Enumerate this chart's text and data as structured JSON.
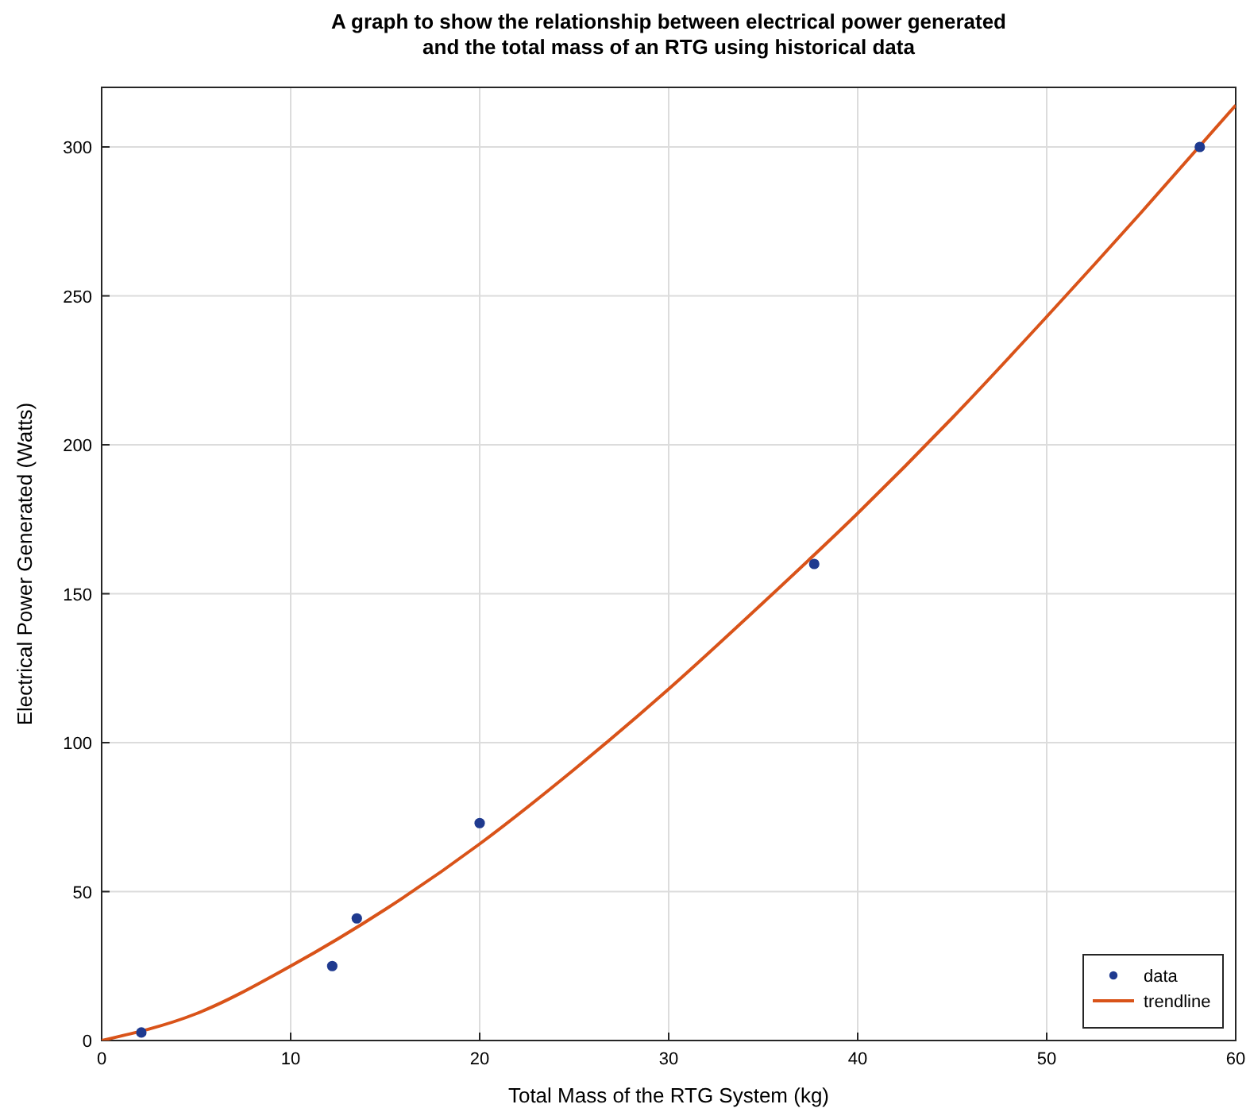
{
  "chart_data": {
    "type": "scatter",
    "title": "A graph to show the relationship between electrical power generated\nand the total mass of an RTG using historical data",
    "xlabel": "Total Mass of the RTG System (kg)",
    "ylabel": "Electrical Power Generated (Watts)",
    "series": [
      {
        "name": "data",
        "color": "#1f3a8f",
        "marker": "circle",
        "x": [
          2.1,
          12.2,
          13.5,
          20,
          37.7,
          58.1
        ],
        "values": [
          2.7,
          25,
          41,
          73,
          160,
          300
        ]
      },
      {
        "name": "trendline",
        "type": "line",
        "color": "#d95319",
        "marker": "none",
        "x": [
          0,
          5,
          10,
          15,
          20,
          25,
          30,
          35,
          40,
          45,
          50,
          55,
          60
        ],
        "values": [
          0,
          9,
          25,
          44,
          66,
          91,
          118,
          147,
          177,
          209,
          243,
          278,
          314
        ]
      }
    ],
    "xlim": [
      0,
      60
    ],
    "ylim": [
      0,
      320
    ],
    "xticks": [
      0,
      10,
      20,
      30,
      40,
      50,
      60
    ],
    "yticks": [
      0,
      50,
      100,
      150,
      200,
      250,
      300
    ],
    "grid": true,
    "legend": "bottom right"
  }
}
